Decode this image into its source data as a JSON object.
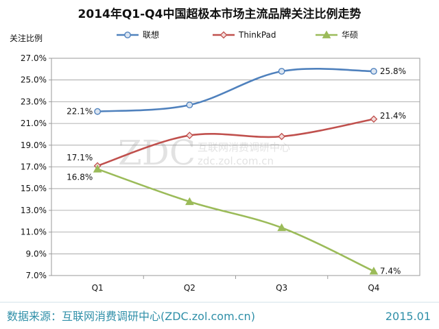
{
  "chart_data": {
    "type": "line",
    "title": "2014年Q1-Q4中国超极本市场主流品牌关注比例走势",
    "ylabel": "关注比例",
    "xlabel": "",
    "categories": [
      "Q1",
      "Q2",
      "Q3",
      "Q4"
    ],
    "y_ticks": [
      "7.0%",
      "9.0%",
      "11.0%",
      "13.0%",
      "15.0%",
      "17.0%",
      "19.0%",
      "21.0%",
      "23.0%",
      "25.0%",
      "27.0%"
    ],
    "ylim": [
      7.0,
      27.0
    ],
    "grid": "horizontal",
    "legend_position": "top",
    "series": [
      {
        "name": "联想",
        "values": [
          22.1,
          22.7,
          25.8,
          25.8
        ],
        "color": "#4f81bd",
        "marker": "circle",
        "labels": {
          "0": "22.1%",
          "3": "25.8%"
        }
      },
      {
        "name": "ThinkPad",
        "values": [
          17.1,
          19.9,
          19.8,
          21.4
        ],
        "color": "#c0504d",
        "marker": "diamond",
        "labels": {
          "0": "17.1%",
          "3": "21.4%"
        }
      },
      {
        "name": "华硕",
        "values": [
          16.8,
          13.8,
          11.4,
          7.4
        ],
        "color": "#9bbb59",
        "marker": "triangle",
        "labels": {
          "0": "16.8%",
          "3": "7.4%"
        }
      }
    ]
  },
  "watermark": {
    "logo": "ZDC",
    "line1": "互联网消费调研中心",
    "line2": "zdc.zol.com.cn"
  },
  "footer": {
    "source": "数据来源：互联网消费调研中心(ZDC.zol.com.cn)",
    "date": "2015.01"
  }
}
